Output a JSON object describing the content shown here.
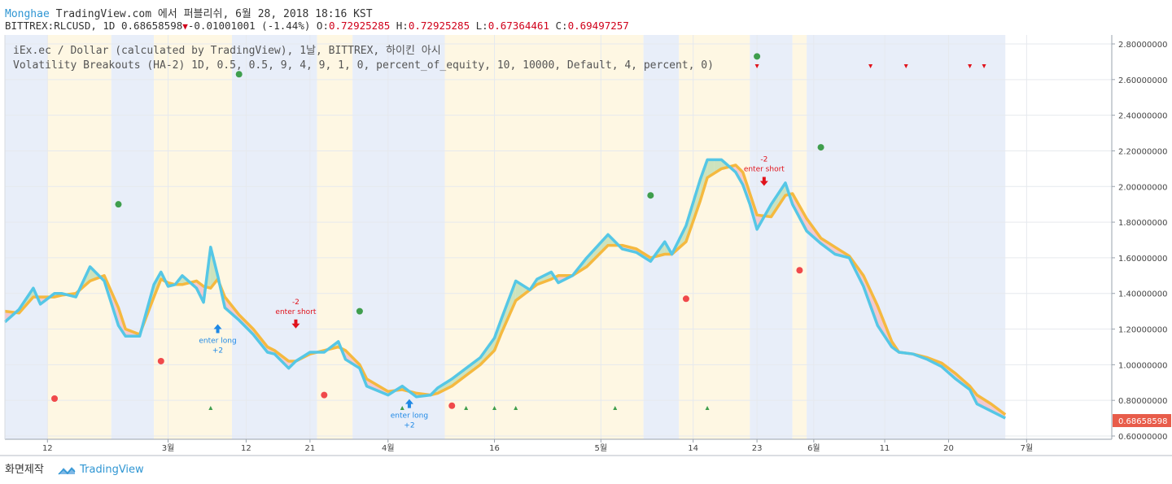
{
  "header": {
    "author": "Monghae",
    "publisher": "TradingView.com 에서 퍼블리쉬, 6월 28, 2018 18:16 KST",
    "symbol": "BITTREX:RLCUSD, 1D 0.68658598",
    "change": "-0.01001001 (-1.44%)",
    "o_label": "O:",
    "o_value": "0.72925285",
    "h_label": "H:",
    "h_value": "0.72925285",
    "l_label": "L:",
    "l_value": "0.67364461",
    "c_label": "C:",
    "c_value": "0.69497257"
  },
  "legend": {
    "line1": "iEx.ec / Dollar (calculated by TradingView), 1날, BITTREX, 하이킨 아시",
    "line2": "Volatility Breakouts (HA-2) 1D, 0.5, 0.5, 9, 4, 9, 1, 0, percent_of_equity, 10, 10000, Default, 4, percent, 0)"
  },
  "footer": {
    "made_with": "화면제작",
    "brand": "TradingView"
  },
  "colors": {
    "blue_band": "#e8eef9",
    "yellow_band": "#fef7e3",
    "fast_line": "#55c7e6",
    "slow_line": "#f5b93f",
    "fill_up": "#c4dfb6",
    "fill_down": "#f4c1c8",
    "green_dot": "#3f9e4d",
    "red_dot": "#f0494b",
    "long_arrow": "#1e88e5",
    "short_arrow": "#e0121b",
    "last_price_bg": "#e85c4a"
  },
  "chart_data": {
    "type": "line",
    "title": "iEx.ec / Dollar, 1D, BITTREX, Heikin Ashi",
    "ylim": [
      0.6,
      2.8
    ],
    "yticks": [
      "2.80000000",
      "2.60000000",
      "2.40000000",
      "2.20000000",
      "2.00000000",
      "1.80000000",
      "1.60000000",
      "1.40000000",
      "1.20000000",
      "1.00000000",
      "0.80000000",
      "0.60000000"
    ],
    "ytick_values": [
      2.8,
      2.6,
      2.4,
      2.2,
      2.0,
      1.8,
      1.6,
      1.4,
      1.2,
      1.0,
      0.8,
      0.6
    ],
    "xlim": [
      0,
      156
    ],
    "xticks": [
      {
        "label": "12",
        "day": 6
      },
      {
        "label": "3월",
        "day": 23
      },
      {
        "label": "12",
        "day": 34
      },
      {
        "label": "21",
        "day": 43
      },
      {
        "label": "4월",
        "day": 54
      },
      {
        "label": "16",
        "day": 69
      },
      {
        "label": "5월",
        "day": 84
      },
      {
        "label": "14",
        "day": 97
      },
      {
        "label": "23",
        "day": 106
      },
      {
        "label": "6월",
        "day": 114
      },
      {
        "label": "11",
        "day": 124
      },
      {
        "label": "20",
        "day": 133
      },
      {
        "label": "7월",
        "day": 144
      }
    ],
    "bands": [
      {
        "from": 0,
        "to": 6,
        "type": "blue"
      },
      {
        "from": 6,
        "to": 15,
        "type": "yellow"
      },
      {
        "from": 15,
        "to": 21,
        "type": "blue"
      },
      {
        "from": 21,
        "to": 32,
        "type": "yellow"
      },
      {
        "from": 32,
        "to": 44,
        "type": "blue"
      },
      {
        "from": 44,
        "to": 49,
        "type": "yellow"
      },
      {
        "from": 49,
        "to": 62,
        "type": "blue"
      },
      {
        "from": 62,
        "to": 90,
        "type": "yellow"
      },
      {
        "from": 90,
        "to": 95,
        "type": "blue"
      },
      {
        "from": 95,
        "to": 105,
        "type": "yellow"
      },
      {
        "from": 105,
        "to": 111,
        "type": "blue"
      },
      {
        "from": 111,
        "to": 113,
        "type": "yellow"
      },
      {
        "from": 113,
        "to": 141,
        "type": "blue"
      }
    ],
    "series": [
      {
        "name": "fast",
        "values": [
          [
            0,
            1.24
          ],
          [
            2,
            1.31
          ],
          [
            4,
            1.43
          ],
          [
            5,
            1.34
          ],
          [
            7,
            1.4
          ],
          [
            8,
            1.4
          ],
          [
            10,
            1.38
          ],
          [
            12,
            1.55
          ],
          [
            14,
            1.47
          ],
          [
            16,
            1.22
          ],
          [
            17,
            1.16
          ],
          [
            19,
            1.16
          ],
          [
            21,
            1.45
          ],
          [
            22,
            1.52
          ],
          [
            23,
            1.44
          ],
          [
            24,
            1.45
          ],
          [
            25,
            1.5
          ],
          [
            27,
            1.43
          ],
          [
            28,
            1.35
          ],
          [
            29,
            1.66
          ],
          [
            30,
            1.5
          ],
          [
            31,
            1.32
          ],
          [
            33,
            1.25
          ],
          [
            35,
            1.17
          ],
          [
            37,
            1.07
          ],
          [
            38,
            1.06
          ],
          [
            40,
            0.98
          ],
          [
            41,
            1.02
          ],
          [
            43,
            1.07
          ],
          [
            45,
            1.07
          ],
          [
            47,
            1.13
          ],
          [
            48,
            1.03
          ],
          [
            50,
            0.98
          ],
          [
            51,
            0.88
          ],
          [
            54,
            0.83
          ],
          [
            56,
            0.88
          ],
          [
            58,
            0.82
          ],
          [
            60,
            0.83
          ],
          [
            61,
            0.87
          ],
          [
            63,
            0.92
          ],
          [
            65,
            0.98
          ],
          [
            67,
            1.04
          ],
          [
            69,
            1.15
          ],
          [
            70,
            1.26
          ],
          [
            72,
            1.47
          ],
          [
            74,
            1.42
          ],
          [
            75,
            1.48
          ],
          [
            77,
            1.52
          ],
          [
            78,
            1.46
          ],
          [
            80,
            1.5
          ],
          [
            82,
            1.6
          ],
          [
            85,
            1.73
          ],
          [
            87,
            1.65
          ],
          [
            89,
            1.63
          ],
          [
            91,
            1.58
          ],
          [
            93,
            1.69
          ],
          [
            94,
            1.62
          ],
          [
            96,
            1.78
          ],
          [
            98,
            2.04
          ],
          [
            99,
            2.15
          ],
          [
            101,
            2.15
          ],
          [
            103,
            2.08
          ],
          [
            104,
            2.01
          ],
          [
            105,
            1.9
          ],
          [
            106,
            1.76
          ],
          [
            108,
            1.9
          ],
          [
            110,
            2.02
          ],
          [
            111,
            1.9
          ],
          [
            113,
            1.75
          ],
          [
            115,
            1.68
          ],
          [
            117,
            1.62
          ],
          [
            119,
            1.6
          ],
          [
            121,
            1.44
          ],
          [
            123,
            1.22
          ],
          [
            125,
            1.1
          ],
          [
            126,
            1.07
          ],
          [
            128,
            1.06
          ],
          [
            130,
            1.03
          ],
          [
            132,
            0.99
          ],
          [
            134,
            0.92
          ],
          [
            136,
            0.86
          ],
          [
            137,
            0.78
          ],
          [
            139,
            0.74
          ],
          [
            141,
            0.7
          ]
        ]
      },
      {
        "name": "slow",
        "values": [
          [
            0,
            1.3
          ],
          [
            2,
            1.29
          ],
          [
            4,
            1.38
          ],
          [
            5,
            1.38
          ],
          [
            7,
            1.38
          ],
          [
            8,
            1.39
          ],
          [
            10,
            1.4
          ],
          [
            12,
            1.47
          ],
          [
            14,
            1.5
          ],
          [
            16,
            1.32
          ],
          [
            17,
            1.2
          ],
          [
            19,
            1.17
          ],
          [
            21,
            1.38
          ],
          [
            22,
            1.48
          ],
          [
            23,
            1.46
          ],
          [
            24,
            1.45
          ],
          [
            25,
            1.45
          ],
          [
            27,
            1.47
          ],
          [
            28,
            1.44
          ],
          [
            29,
            1.43
          ],
          [
            30,
            1.48
          ],
          [
            31,
            1.38
          ],
          [
            33,
            1.28
          ],
          [
            35,
            1.2
          ],
          [
            37,
            1.1
          ],
          [
            38,
            1.08
          ],
          [
            40,
            1.02
          ],
          [
            41,
            1.02
          ],
          [
            43,
            1.06
          ],
          [
            45,
            1.08
          ],
          [
            47,
            1.1
          ],
          [
            48,
            1.08
          ],
          [
            50,
            1.0
          ],
          [
            51,
            0.92
          ],
          [
            54,
            0.85
          ],
          [
            56,
            0.86
          ],
          [
            58,
            0.84
          ],
          [
            60,
            0.83
          ],
          [
            61,
            0.84
          ],
          [
            63,
            0.88
          ],
          [
            65,
            0.94
          ],
          [
            67,
            1.0
          ],
          [
            69,
            1.08
          ],
          [
            70,
            1.18
          ],
          [
            72,
            1.36
          ],
          [
            74,
            1.42
          ],
          [
            75,
            1.45
          ],
          [
            77,
            1.48
          ],
          [
            78,
            1.5
          ],
          [
            80,
            1.5
          ],
          [
            82,
            1.55
          ],
          [
            85,
            1.67
          ],
          [
            87,
            1.67
          ],
          [
            89,
            1.65
          ],
          [
            91,
            1.6
          ],
          [
            93,
            1.62
          ],
          [
            94,
            1.62
          ],
          [
            96,
            1.69
          ],
          [
            98,
            1.92
          ],
          [
            99,
            2.05
          ],
          [
            101,
            2.1
          ],
          [
            103,
            2.12
          ],
          [
            104,
            2.08
          ],
          [
            105,
            1.96
          ],
          [
            106,
            1.84
          ],
          [
            108,
            1.83
          ],
          [
            110,
            1.95
          ],
          [
            111,
            1.96
          ],
          [
            113,
            1.82
          ],
          [
            115,
            1.71
          ],
          [
            117,
            1.66
          ],
          [
            119,
            1.61
          ],
          [
            121,
            1.5
          ],
          [
            123,
            1.33
          ],
          [
            125,
            1.13
          ],
          [
            126,
            1.07
          ],
          [
            128,
            1.06
          ],
          [
            130,
            1.04
          ],
          [
            132,
            1.01
          ],
          [
            134,
            0.95
          ],
          [
            136,
            0.88
          ],
          [
            137,
            0.83
          ],
          [
            139,
            0.78
          ],
          [
            141,
            0.72
          ]
        ]
      }
    ],
    "green_dots": [
      [
        16,
        1.9
      ],
      [
        33,
        2.63
      ],
      [
        50,
        1.3
      ],
      [
        91,
        1.95
      ],
      [
        106,
        2.73
      ],
      [
        115,
        2.22
      ]
    ],
    "red_dots": [
      [
        7,
        0.81
      ],
      [
        22,
        1.02
      ],
      [
        45,
        0.83
      ],
      [
        63,
        0.77
      ],
      [
        96,
        1.37
      ],
      [
        112,
        1.53
      ]
    ],
    "small_up_markers": [
      29,
      56,
      65,
      69,
      72,
      86,
      99
    ],
    "small_down_markers": [
      106,
      122,
      127,
      136,
      138
    ],
    "trade_labels": [
      {
        "text1": "enter long",
        "text2": "+2",
        "day": 30,
        "price": 1.2,
        "kind": "long"
      },
      {
        "text1": "-2",
        "text2": "enter short",
        "day": 41,
        "price": 1.24,
        "kind": "short"
      },
      {
        "text1": "enter long",
        "text2": "+2",
        "day": 57,
        "price": 0.78,
        "kind": "long"
      },
      {
        "text1": "-2",
        "text2": "enter short",
        "day": 107,
        "price": 2.04,
        "kind": "short"
      }
    ],
    "last_price": 0.68658598,
    "last_price_label": "0.68658598"
  }
}
